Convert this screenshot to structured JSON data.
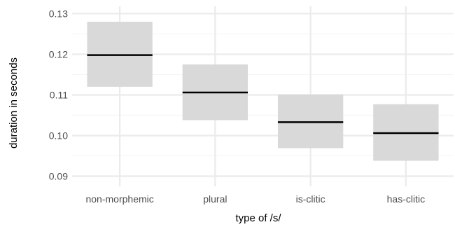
{
  "chart_data": {
    "type": "box",
    "categories": [
      "non-morphemic",
      "plural",
      "is-clitic",
      "has-clitic"
    ],
    "series": [
      {
        "estimate": [
          0.1198,
          0.1106,
          0.1033,
          0.1006
        ],
        "lower": [
          0.112,
          0.1038,
          0.0969,
          0.0938
        ],
        "upper": [
          0.128,
          0.1175,
          0.1101,
          0.1077
        ]
      }
    ],
    "xlabel": "type of /s/",
    "ylabel": "duration in seconds",
    "ylim": [
      0.0875,
      0.1318
    ],
    "yticks": [
      0.09,
      0.1,
      0.11,
      0.12,
      0.13
    ],
    "ytick_labels": [
      "0.09",
      "0.10",
      "0.11",
      "0.12",
      "0.13"
    ],
    "grid": true,
    "colors": {
      "box_fill": "#d9d9d9",
      "estimate_line": "#000000",
      "grid_major": "#ebebeb",
      "grid_minor": "#f4f4f4",
      "tick_label": "#4d4d4d"
    }
  }
}
